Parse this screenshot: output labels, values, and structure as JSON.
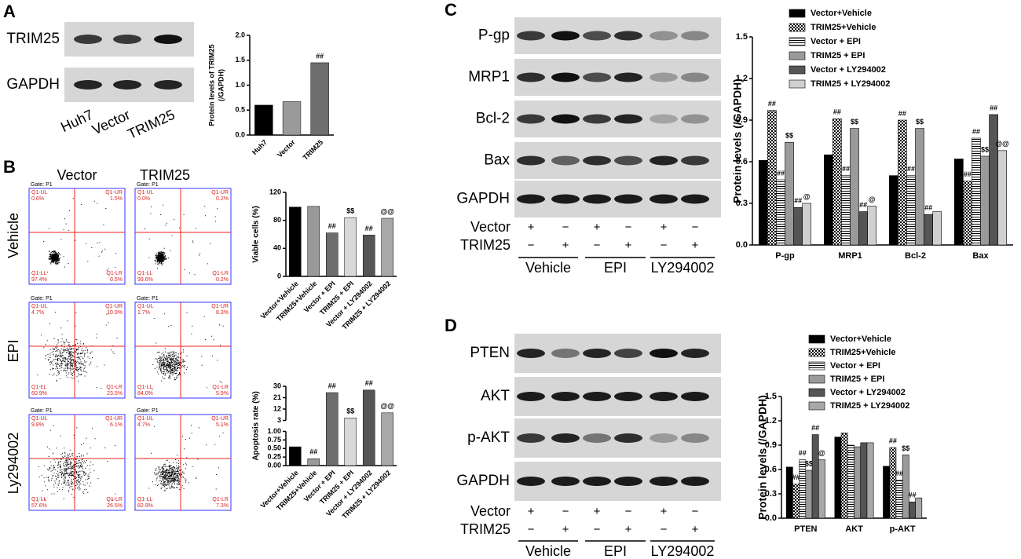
{
  "panel_labels": [
    "A",
    "B",
    "C",
    "D"
  ],
  "panel_a": {
    "blot_rows": [
      "TRIM25",
      "GAPDH"
    ],
    "lanes": [
      "Huh7",
      "Vector",
      "TRIM25"
    ]
  },
  "panel_b": {
    "columns": [
      "Vector",
      "TRIM25"
    ],
    "rows": [
      "Vehicle",
      "EPI",
      "Ly294002"
    ],
    "gate": "Gate: P1",
    "quadrants": [
      "Q1-UL",
      "Q1-UR",
      "Q1-LL",
      "Q1-LR"
    ],
    "percentages": [
      [
        "0.6%",
        "1.5%",
        "97.4%",
        "0.5%"
      ],
      [
        "0.0%",
        "0.2%",
        "99.6%",
        "0.2%"
      ],
      [
        "4.7%",
        "10.9%",
        "60.9%",
        "23.5%"
      ],
      [
        "1.7%",
        "8.3%",
        "84.0%",
        "5.9%"
      ],
      [
        "9.8%",
        "6.1%",
        "57.6%",
        "26.5%"
      ],
      [
        "4.7%",
        "5.1%",
        "82.9%",
        "7.3%"
      ]
    ]
  },
  "panel_c": {
    "blot_rows": [
      "P-gp",
      "MRP1",
      "Bcl-2",
      "Bax",
      "GAPDH"
    ],
    "treatments": [
      "Vector",
      "TRIM25"
    ],
    "signs": [
      [
        "+",
        "−",
        "+",
        "−",
        "+",
        "−"
      ],
      [
        "−",
        "+",
        "−",
        "+",
        "−",
        "+"
      ]
    ],
    "groups": [
      "Vehicle",
      "EPI",
      "LY294002"
    ]
  },
  "panel_d": {
    "blot_rows": [
      "PTEN",
      "AKT",
      "p-AKT",
      "GAPDH"
    ],
    "treatments": [
      "Vector",
      "TRIM25"
    ],
    "signs": [
      [
        "+",
        "−",
        "+",
        "−",
        "+",
        "−"
      ],
      [
        "−",
        "+",
        "−",
        "+",
        "−",
        "+"
      ]
    ],
    "groups": [
      "Vehicle",
      "EPI",
      "LY294002"
    ]
  },
  "chart_data": [
    {
      "type": "bar",
      "y_label": [
        "Protein levels of TRIM25",
        "(/GAPDH)"
      ],
      "categories": [
        "Huh7",
        "Vector",
        "TRIM25"
      ],
      "values": [
        0.6,
        0.67,
        1.45
      ],
      "colors": [
        "#000000",
        "#9a9a9a",
        "#6e6e6e"
      ],
      "annotations": [
        null,
        null,
        "##"
      ],
      "ylim": [
        0,
        2
      ],
      "yticks": [
        {
          "value": 0,
          "label": "0.0"
        },
        {
          "value": 0.5,
          "label": "0.5"
        },
        {
          "value": 1,
          "label": "1.0"
        },
        {
          "value": 1.5,
          "label": "1.5"
        },
        {
          "value": 2,
          "label": "2.0"
        }
      ]
    },
    {
      "type": "bar",
      "y_label": "Viable cells (%)",
      "categories": [
        "Vector+Vehicle",
        "TRIM25+Vehicle",
        "Vector + EPI",
        "TRIM25 + EPI",
        "Vector + LY294002",
        "TRIM25 + LY294002"
      ],
      "values": [
        99,
        100,
        62,
        84,
        59,
        83
      ],
      "colors": [
        "#000000",
        "#9a9a9a",
        "#6e6e6e",
        "#d9d9d9",
        "#555555",
        "#a8a8a8"
      ],
      "annotations": [
        null,
        null,
        "##",
        "$$",
        "##",
        "@@"
      ],
      "ylim": [
        0,
        120
      ],
      "yticks": [
        0,
        40,
        80,
        120
      ]
    },
    {
      "type": "bar",
      "y_label": "Apoptosis rate (%)",
      "categories": [
        "Vector+Vehicle",
        "TRIM25+Vehicle",
        "Vector + EPI",
        "TRIM25 + EPI",
        "Vector + LY294002",
        "TRIM25 + LY294002"
      ],
      "values": [
        0.55,
        0.2,
        25,
        5,
        27,
        9
      ],
      "colors": [
        "#000000",
        "#9a9a9a",
        "#6e6e6e",
        "#d9d9d9",
        "#555555",
        "#a8a8a8"
      ],
      "annotations": [
        null,
        "##",
        "##",
        "$$",
        "##",
        "@@"
      ],
      "ylim": [
        0,
        30
      ],
      "ybreak": [
        1,
        3
      ],
      "yticks": [
        {
          "value": 0,
          "label": "0.00"
        },
        {
          "value": 0.25,
          "label": "0.25"
        },
        {
          "value": 0.5,
          "label": "0.50"
        },
        {
          "value": 0.75,
          "label": "0.75"
        },
        {
          "value": 1,
          "label": "1.00"
        },
        3,
        12,
        21,
        30
      ]
    },
    {
      "type": "grouped_bar",
      "y_label": "Protein levels (/GAPDH)",
      "categories": [
        "P-gp",
        "MRP1",
        "Bcl-2",
        "Bax"
      ],
      "series": [
        {
          "name": "Vector+Vehicle",
          "color": "#000000",
          "values": [
            0.61,
            0.65,
            0.5,
            0.62
          ],
          "annotations": [
            null,
            null,
            null,
            null
          ]
        },
        {
          "name": "TRIM25+Vehicle",
          "color": "#000000",
          "pattern": "checker",
          "values": [
            0.97,
            0.91,
            0.9,
            0.46
          ],
          "annotations": [
            "##",
            "##",
            "##",
            "##"
          ]
        },
        {
          "name": "Vector + EPI",
          "color": "#000000",
          "pattern": "stripes",
          "values": [
            0.47,
            0.5,
            0.5,
            0.77
          ],
          "annotations": [
            "##",
            "##",
            "##",
            "##"
          ]
        },
        {
          "name": "TRIM25 + EPI",
          "color": "#9a9a9a",
          "values": [
            0.74,
            0.84,
            0.84,
            0.64
          ],
          "annotations": [
            "$$",
            "$$",
            "$$",
            "$$"
          ]
        },
        {
          "name": "Vector + LY294002",
          "color": "#555555",
          "values": [
            0.27,
            0.24,
            0.22,
            0.94
          ],
          "annotations": [
            "##",
            "##",
            "##",
            "##"
          ]
        },
        {
          "name": "TRIM25 + LY294002",
          "color": "#d0d0d0",
          "values": [
            0.3,
            0.28,
            0.24,
            0.68
          ],
          "annotations": [
            "@",
            "@",
            null,
            "@@"
          ]
        }
      ],
      "ylim": [
        0,
        1.5
      ],
      "yticks": [
        {
          "value": 0,
          "label": "0.0"
        },
        {
          "value": 0.3,
          "label": "0.3"
        },
        {
          "value": 0.6,
          "label": "0.6"
        },
        {
          "value": 0.9,
          "label": "0.9"
        },
        {
          "value": 1.2,
          "label": "1.2"
        },
        {
          "value": 1.5,
          "label": "1.5"
        }
      ]
    },
    {
      "type": "grouped_bar",
      "y_label": "Protein levels (/GAPDH)",
      "categories": [
        "PTEN",
        "AKT",
        "p-AKT"
      ],
      "series": [
        {
          "name": "Vector+Vehicle",
          "color": "#000000",
          "values": [
            0.63,
            1.0,
            0.64
          ],
          "annotations": [
            null,
            null,
            null
          ]
        },
        {
          "name": "TRIM25+Vehicle",
          "color": "#000000",
          "pattern": "checker",
          "values": [
            0.42,
            1.05,
            0.87
          ],
          "annotations": [
            "##",
            null,
            "##"
          ]
        },
        {
          "name": "Vector + EPI",
          "color": "#000000",
          "pattern": "stripes",
          "values": [
            0.72,
            0.9,
            0.47
          ],
          "annotations": [
            "##",
            null,
            "##"
          ]
        },
        {
          "name": "TRIM25 + EPI",
          "color": "#9a9a9a",
          "values": [
            0.59,
            0.88,
            0.78
          ],
          "annotations": [
            "$$",
            null,
            "$$"
          ]
        },
        {
          "name": "Vector + LY294002",
          "color": "#555555",
          "values": [
            1.03,
            0.93,
            0.2
          ],
          "annotations": [
            "##",
            null,
            "##"
          ]
        },
        {
          "name": "TRIM25 + LY294002",
          "color": "#a8a8a8",
          "values": [
            0.72,
            0.93,
            0.25
          ],
          "annotations": [
            "@",
            null,
            null
          ]
        }
      ],
      "ylim": [
        0,
        1.5
      ],
      "yticks": [
        {
          "value": 0,
          "label": "0.0"
        },
        {
          "value": 0.3,
          "label": "0.3"
        },
        {
          "value": 0.6,
          "label": "0.6"
        },
        {
          "value": 0.9,
          "label": "0.9"
        },
        {
          "value": 1.2,
          "label": "1.2"
        },
        {
          "value": 1.5,
          "label": "1.5"
        }
      ]
    }
  ]
}
